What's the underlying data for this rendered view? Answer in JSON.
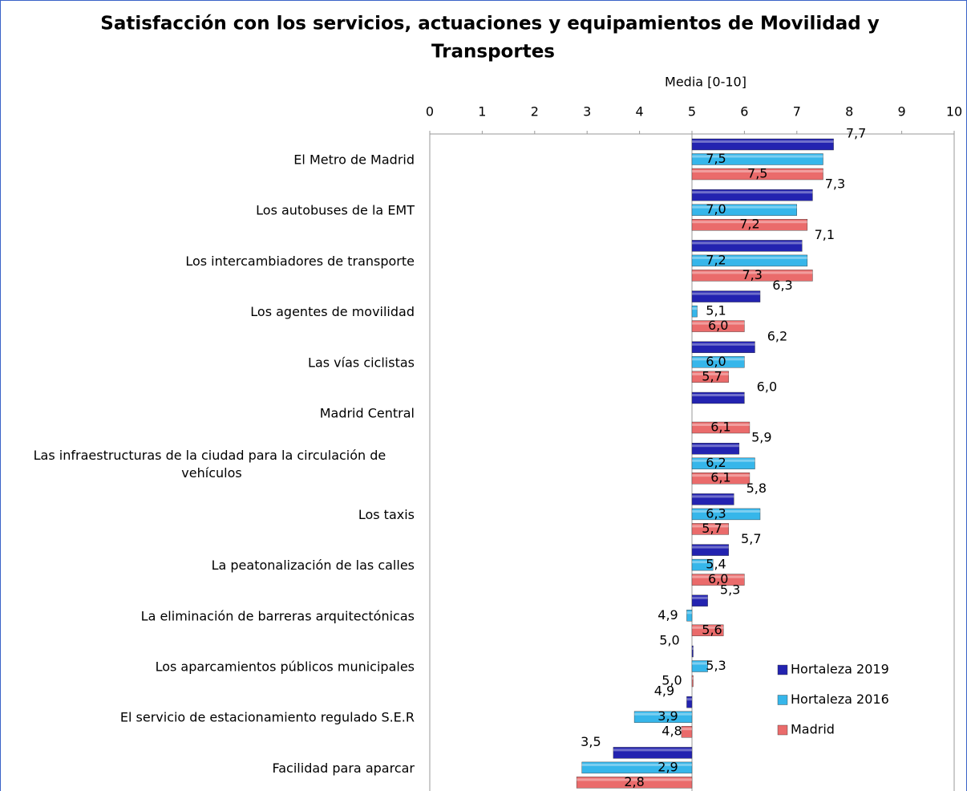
{
  "chart_data": {
    "type": "hbar",
    "title": "Satisfacción con los servicios, actuaciones y equipamientos de Movilidad y Transportes",
    "x_label": "Media [0-10]",
    "categories": [
      "El Metro de Madrid",
      "Los autobuses de la EMT",
      "Los intercambiadores de transporte",
      "Los agentes de movilidad",
      "Las vías ciclistas",
      "Madrid Central",
      "Las infraestructuras de la ciudad para la circulación de vehículos",
      "Los taxis",
      "La peatonalización de las calles",
      "La eliminación de barreras arquitectónicas",
      "Los aparcamientos públicos municipales",
      "El servicio de estacionamiento regulado S.E.R",
      "Facilidad para aparcar"
    ],
    "baseline": 5,
    "series": [
      {
        "name": "Hortaleza 2019",
        "color": "#2323b0",
        "values": [
          7.7,
          7.3,
          7.1,
          6.3,
          6.2,
          6.0,
          5.9,
          5.8,
          5.7,
          5.3,
          5.0,
          4.9,
          3.5
        ],
        "value_labels": [
          "7,7",
          "7,3",
          "7,1",
          "6,3",
          "6,2",
          "6,0",
          "5,9",
          "5,8",
          "5,7",
          "5,3",
          "5,0",
          "4,9",
          "3,5"
        ]
      },
      {
        "name": "Hortaleza 2016",
        "color": "#36b6ea",
        "values": [
          7.5,
          7.0,
          7.2,
          5.1,
          6.0,
          null,
          6.2,
          6.3,
          5.4,
          4.9,
          5.3,
          3.9,
          2.9
        ],
        "value_labels": [
          "7,5",
          "7,0",
          "7,2",
          "5,1",
          "6,0",
          null,
          "6,2",
          "6,3",
          "5,4",
          "4,9",
          "5,3",
          "3,9",
          "2,9"
        ]
      },
      {
        "name": "Madrid",
        "color": "#ea6b6b",
        "values": [
          7.5,
          7.2,
          7.3,
          6.0,
          5.7,
          6.1,
          6.1,
          5.7,
          6.0,
          5.6,
          5.0,
          4.8,
          2.8
        ],
        "value_labels": [
          "7,5",
          "7,2",
          "7,3",
          "6,0",
          "5,7",
          "6,1",
          "6,1",
          "5,7",
          "6,0",
          "5,6",
          "5,0",
          "4,8",
          "2,8"
        ]
      }
    ],
    "xlim": [
      0,
      10
    ],
    "xticks": [
      0,
      1,
      2,
      3,
      4,
      5,
      6,
      7,
      8,
      9,
      10
    ],
    "grid": false,
    "legend": "lower right"
  }
}
